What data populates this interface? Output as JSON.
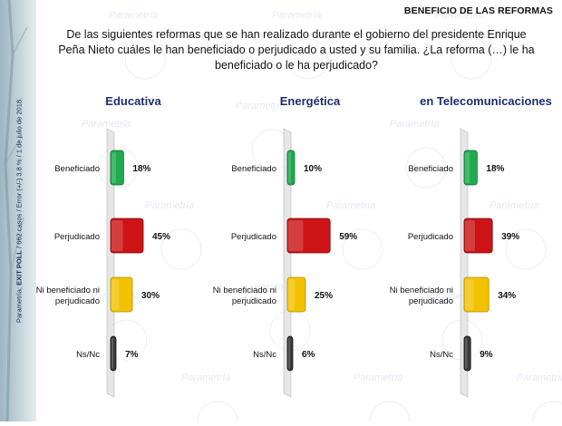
{
  "header": {
    "title": "BENEFICIO DE LAS REFORMAS"
  },
  "question": "De las siguientes reformas que se han realizado durante el gobierno del presidente Enrique Peña Nieto cuáles le han beneficiado o perjudicado a usted y su familia. ¿La reforma (…) le ha beneficiado o le ha perjudicado?",
  "sidebar": {
    "source_label": "Parametría;",
    "source_bold": "EXIT POLL",
    "source_rest": "/ 662 casos / Error (+/-) 3.8 % / 1 de julio de 2018."
  },
  "watermark": {
    "text": "Parametría"
  },
  "colors": {
    "beneficiado": "#1faa4e",
    "perjudicado": "#cc1416",
    "ni": "#f2c200",
    "nsnc": "#3a3a3a",
    "title": "#1f2d6e"
  },
  "chart_data": [
    {
      "type": "bar",
      "title": "Educativa",
      "categories": [
        "Beneficiado",
        "Perjudicado",
        "Ni beneficiado ni perjudicado",
        "Ns/Nc"
      ],
      "values": [
        18,
        45,
        30,
        7
      ],
      "labels": [
        "18%",
        "45%",
        "30%",
        "7%"
      ],
      "unit": "%"
    },
    {
      "type": "bar",
      "title": "Energética",
      "categories": [
        "Beneficiado",
        "Perjudicado",
        "Ni beneficiado ni perjudicado",
        "Ns/Nc"
      ],
      "values": [
        10,
        59,
        25,
        6
      ],
      "labels": [
        "10%",
        "59%",
        "25%",
        "6%"
      ],
      "unit": "%"
    },
    {
      "type": "bar",
      "title": "en Telecomunicaciones",
      "categories": [
        "Beneficiado",
        "Perjudicado",
        "Ni beneficiado ni perjudicado",
        "Ns/Nc"
      ],
      "values": [
        18,
        39,
        34,
        9
      ],
      "labels": [
        "18%",
        "39%",
        "34%",
        "9%"
      ],
      "unit": "%"
    }
  ]
}
